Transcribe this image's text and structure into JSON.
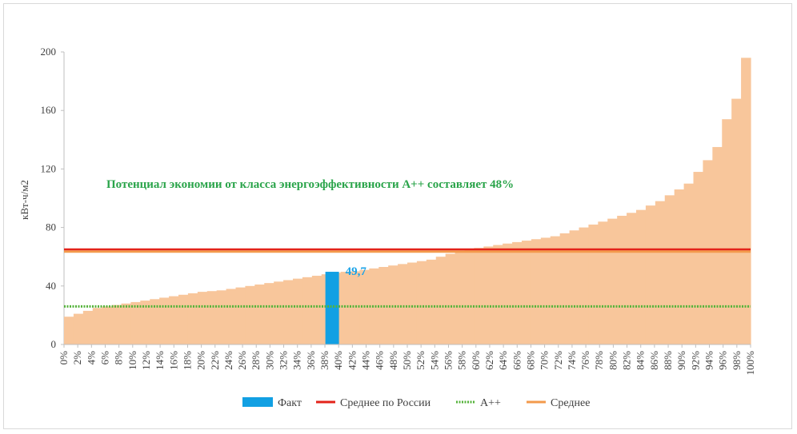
{
  "chart_data": {
    "type": "bar",
    "ylabel": "кВт-ч/м2",
    "ylim": [
      0,
      200
    ],
    "yticks": [
      0,
      40,
      80,
      120,
      160,
      200
    ],
    "xtick_labels": [
      "0%",
      "2%",
      "4%",
      "6%",
      "8%",
      "10%",
      "12%",
      "14%",
      "16%",
      "18%",
      "20%",
      "22%",
      "24%",
      "26%",
      "28%",
      "30%",
      "32%",
      "34%",
      "36%",
      "38%",
      "40%",
      "42%",
      "44%",
      "46%",
      "48%",
      "50%",
      "52%",
      "54%",
      "56%",
      "58%",
      "60%",
      "62%",
      "64%",
      "66%",
      "68%",
      "70%",
      "72%",
      "74%",
      "76%",
      "78%",
      "80%",
      "82%",
      "84%",
      "86%",
      "88%",
      "90%",
      "92%",
      "94%",
      "96%",
      "98%",
      "100%"
    ],
    "values": [
      19,
      21,
      23,
      25,
      26,
      27,
      28,
      29,
      30,
      31,
      32,
      33,
      34,
      35,
      36,
      36.5,
      37,
      38,
      39,
      40,
      41,
      42,
      43,
      44,
      45,
      46,
      47,
      48,
      49,
      49.7,
      50,
      51,
      52,
      53,
      54,
      55,
      56,
      57,
      58,
      60,
      62,
      64,
      65,
      66,
      67,
      68,
      69,
      70,
      71,
      72,
      73,
      74,
      76,
      78,
      80,
      82,
      84,
      86,
      88,
      90,
      92,
      95,
      98,
      102,
      106,
      110,
      118,
      126,
      135,
      154,
      168,
      196
    ],
    "bar_color": "#f8c69b",
    "fact": {
      "name": "Факт",
      "value": 49.7,
      "label": "49,7",
      "position_percent": 39,
      "color": "#12a0e3"
    },
    "lines": [
      {
        "name": "Среднее по России",
        "value": 65,
        "color": "#e3231a"
      },
      {
        "name": "А++",
        "value": 26,
        "color": "#55b33b"
      },
      {
        "name": "Среднее",
        "value": 63.5,
        "color": "#f39a4c"
      }
    ],
    "annotation": "Потенциал экономии от класса энергоэффективности А++ составляет 48%",
    "grid": false,
    "legend_position": "bottom"
  }
}
